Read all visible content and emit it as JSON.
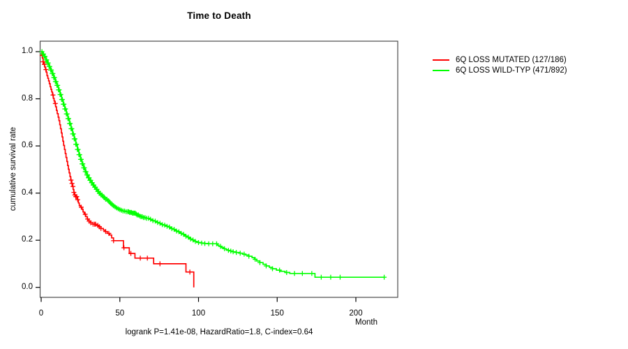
{
  "title": "Time to Death",
  "footer": "logrank P=1.41e-08, HazardRatio=1.8, C-index=0.64",
  "axes": {
    "y_label": "cumulative survival rate",
    "x_label": "Month"
  },
  "legend": {
    "items": [
      {
        "label": "6Q LOSS MUTATED (127/186)",
        "color": "#ff0000"
      },
      {
        "label": "6Q LOSS WILD-TYP (471/892)",
        "color": "#00ff00"
      }
    ]
  },
  "chart_data": {
    "type": "line",
    "subtype": "kaplan-meier-step",
    "title": "Time to Death",
    "xlabel": "Month",
    "ylabel": "cumulative survival rate",
    "xlim": [
      0,
      227
    ],
    "ylim": [
      0,
      1
    ],
    "x_ticks": [
      0,
      50,
      100,
      150,
      200
    ],
    "y_ticks": [
      "0.0",
      "0.2",
      "0.4",
      "0.6",
      "0.8",
      "1.0"
    ],
    "grid": false,
    "legend_position": "outside-top-right",
    "annotation": "logrank P=1.41e-08, HazardRatio=1.8, C-index=0.64",
    "series": [
      {
        "name": "6Q LOSS MUTATED (127/186)",
        "events": "127/186",
        "color": "#ff0000",
        "points": [
          [
            0,
            1.0
          ],
          [
            0.4,
            0.984
          ],
          [
            0.8,
            0.973
          ],
          [
            1.2,
            0.957
          ],
          [
            1.7,
            0.946
          ],
          [
            2.2,
            0.935
          ],
          [
            2.7,
            0.924
          ],
          [
            3.2,
            0.913
          ],
          [
            3.7,
            0.898
          ],
          [
            4.2,
            0.887
          ],
          [
            4.7,
            0.876
          ],
          [
            5.2,
            0.864
          ],
          [
            5.7,
            0.851
          ],
          [
            6.2,
            0.84
          ],
          [
            6.7,
            0.829
          ],
          [
            7.2,
            0.816
          ],
          [
            7.7,
            0.802
          ],
          [
            8.2,
            0.791
          ],
          [
            8.7,
            0.78
          ],
          [
            9.2,
            0.766
          ],
          [
            9.7,
            0.751
          ],
          [
            10.2,
            0.737
          ],
          [
            10.8,
            0.722
          ],
          [
            11.3,
            0.707
          ],
          [
            11.8,
            0.69
          ],
          [
            12.3,
            0.673
          ],
          [
            12.8,
            0.655
          ],
          [
            13.3,
            0.638
          ],
          [
            13.8,
            0.62
          ],
          [
            14.3,
            0.602
          ],
          [
            14.8,
            0.585
          ],
          [
            15.3,
            0.568
          ],
          [
            15.8,
            0.551
          ],
          [
            16.3,
            0.534
          ],
          [
            16.8,
            0.517
          ],
          [
            17.3,
            0.501
          ],
          [
            17.8,
            0.486
          ],
          [
            18.3,
            0.47
          ],
          [
            18.8,
            0.455
          ],
          [
            19.3,
            0.441
          ],
          [
            19.8,
            0.428
          ],
          [
            20.3,
            0.415
          ],
          [
            20.8,
            0.403
          ],
          [
            21.3,
            0.392
          ],
          [
            22,
            0.385
          ],
          [
            23.2,
            0.372
          ],
          [
            23.7,
            0.358
          ],
          [
            24.2,
            0.347
          ],
          [
            25,
            0.34
          ],
          [
            26,
            0.331
          ],
          [
            26.6,
            0.32
          ],
          [
            27.3,
            0.31
          ],
          [
            28.3,
            0.3
          ],
          [
            29.3,
            0.29
          ],
          [
            30.3,
            0.281
          ],
          [
            31.5,
            0.274
          ],
          [
            33,
            0.268
          ],
          [
            35,
            0.263
          ],
          [
            36.5,
            0.257
          ],
          [
            38,
            0.25
          ],
          [
            39.5,
            0.243
          ],
          [
            40.5,
            0.237
          ],
          [
            42,
            0.229
          ],
          [
            43.5,
            0.222
          ],
          [
            44.8,
            0.21
          ],
          [
            46,
            0.198
          ],
          [
            52.3,
            0.168
          ],
          [
            56,
            0.144
          ],
          [
            59.6,
            0.124
          ],
          [
            71.5,
            0.1
          ],
          [
            92,
            0.065
          ],
          [
            97,
            0.0
          ]
        ],
        "censor_marks": [
          0.6,
          1.2,
          2,
          3,
          7.5,
          9,
          19,
          19.6,
          20.2,
          20.8,
          21.4,
          22,
          22.6,
          23.2,
          25.5,
          28,
          29.5,
          30.5,
          31.5,
          33,
          34,
          34.6,
          36,
          37,
          38,
          41,
          43,
          46,
          52.6,
          57,
          63,
          67.5,
          75.5,
          94.5
        ]
      },
      {
        "name": "6Q LOSS WILD-TYP (471/892)",
        "events": "471/892",
        "color": "#00ff00",
        "points": [
          [
            0,
            1.0
          ],
          [
            1,
            0.99
          ],
          [
            2,
            0.98
          ],
          [
            3,
            0.965
          ],
          [
            4,
            0.952
          ],
          [
            5,
            0.937
          ],
          [
            6,
            0.922
          ],
          [
            7,
            0.907
          ],
          [
            8,
            0.89
          ],
          [
            9,
            0.873
          ],
          [
            10,
            0.857
          ],
          [
            11,
            0.838
          ],
          [
            12,
            0.818
          ],
          [
            13,
            0.797
          ],
          [
            14,
            0.777
          ],
          [
            15,
            0.757
          ],
          [
            16,
            0.736
          ],
          [
            17,
            0.716
          ],
          [
            18,
            0.695
          ],
          [
            19,
            0.673
          ],
          [
            20,
            0.651
          ],
          [
            21,
            0.63
          ],
          [
            22,
            0.607
          ],
          [
            23,
            0.585
          ],
          [
            24,
            0.563
          ],
          [
            25,
            0.543
          ],
          [
            26,
            0.524
          ],
          [
            27,
            0.507
          ],
          [
            28,
            0.491
          ],
          [
            29,
            0.477
          ],
          [
            30,
            0.465
          ],
          [
            31,
            0.454
          ],
          [
            32,
            0.444
          ],
          [
            33,
            0.434
          ],
          [
            34,
            0.425
          ],
          [
            35,
            0.416
          ],
          [
            36,
            0.407
          ],
          [
            37,
            0.399
          ],
          [
            38,
            0.392
          ],
          [
            39,
            0.386
          ],
          [
            40,
            0.38
          ],
          [
            41,
            0.374
          ],
          [
            42,
            0.368
          ],
          [
            43,
            0.362
          ],
          [
            44,
            0.356
          ],
          [
            45,
            0.351
          ],
          [
            46,
            0.346
          ],
          [
            47,
            0.341
          ],
          [
            48,
            0.337
          ],
          [
            49,
            0.333
          ],
          [
            50,
            0.33
          ],
          [
            51,
            0.327
          ],
          [
            52,
            0.324
          ],
          [
            54,
            0.321
          ],
          [
            56,
            0.318
          ],
          [
            58,
            0.315
          ],
          [
            60,
            0.311
          ],
          [
            61,
            0.307
          ],
          [
            62,
            0.303
          ],
          [
            63,
            0.3
          ],
          [
            65,
            0.296
          ],
          [
            67,
            0.293
          ],
          [
            69,
            0.289
          ],
          [
            70,
            0.286
          ],
          [
            71,
            0.283
          ],
          [
            72,
            0.281
          ],
          [
            73,
            0.278
          ],
          [
            74,
            0.275
          ],
          [
            75,
            0.272
          ],
          [
            76,
            0.269
          ],
          [
            77,
            0.266
          ],
          [
            78,
            0.264
          ],
          [
            79,
            0.262
          ],
          [
            80,
            0.259
          ],
          [
            81,
            0.256
          ],
          [
            82,
            0.253
          ],
          [
            83,
            0.249
          ],
          [
            84,
            0.246
          ],
          [
            85,
            0.243
          ],
          [
            86,
            0.239
          ],
          [
            87,
            0.236
          ],
          [
            88,
            0.232
          ],
          [
            89,
            0.229
          ],
          [
            90,
            0.225
          ],
          [
            91,
            0.221
          ],
          [
            92,
            0.217
          ],
          [
            93,
            0.213
          ],
          [
            94,
            0.209
          ],
          [
            95,
            0.205
          ],
          [
            96,
            0.201
          ],
          [
            97,
            0.198
          ],
          [
            98,
            0.195
          ],
          [
            99,
            0.192
          ],
          [
            100,
            0.19
          ],
          [
            102,
            0.188
          ],
          [
            104,
            0.186
          ],
          [
            106,
            0.185
          ],
          [
            112,
            0.179
          ],
          [
            113,
            0.174
          ],
          [
            114.5,
            0.169
          ],
          [
            116,
            0.164
          ],
          [
            117.5,
            0.16
          ],
          [
            119,
            0.157
          ],
          [
            120.5,
            0.154
          ],
          [
            122,
            0.151
          ],
          [
            124,
            0.148
          ],
          [
            126,
            0.145
          ],
          [
            128,
            0.141
          ],
          [
            130,
            0.137
          ],
          [
            132,
            0.132
          ],
          [
            134,
            0.126
          ],
          [
            135.5,
            0.119
          ],
          [
            137,
            0.112
          ],
          [
            139,
            0.105
          ],
          [
            141,
            0.098
          ],
          [
            143,
            0.091
          ],
          [
            145,
            0.085
          ],
          [
            147,
            0.079
          ],
          [
            149.5,
            0.073
          ],
          [
            152,
            0.068
          ],
          [
            155,
            0.063
          ],
          [
            158,
            0.059
          ],
          [
            174,
            0.043
          ],
          [
            218,
            0.043
          ]
        ],
        "censor_marks": [
          0.5,
          1,
          1.5,
          2,
          2.5,
          3,
          3.5,
          4,
          4.5,
          5,
          5.5,
          6,
          6.5,
          7,
          7.5,
          8,
          8.5,
          9,
          9.5,
          10,
          10.5,
          11,
          11.5,
          12,
          12.5,
          13,
          13.5,
          14,
          14.5,
          15,
          15.5,
          16,
          16.5,
          17,
          17.5,
          18,
          18.5,
          19,
          19.5,
          20,
          20.5,
          21,
          21.5,
          22,
          22.5,
          23,
          23.5,
          24,
          24.5,
          25,
          25.5,
          26,
          26.5,
          27,
          27.5,
          28,
          28.5,
          29,
          29.5,
          30,
          30.5,
          31,
          31.5,
          32,
          32.5,
          33,
          33.5,
          34,
          34.5,
          35,
          35.5,
          36,
          36.5,
          37,
          37.5,
          38,
          38.7,
          39.4,
          40.2,
          41,
          41.8,
          42.6,
          43.5,
          44.3,
          45.2,
          46,
          47,
          48,
          49,
          50,
          51,
          52,
          53,
          54,
          55,
          55.6,
          56.2,
          56.8,
          57.4,
          58,
          58.6,
          59.2,
          59.8,
          60.4,
          61,
          61.8,
          62.6,
          63.4,
          64.2,
          65,
          66,
          67,
          68.2,
          69.5,
          71,
          72.5,
          74,
          75.5,
          77,
          78.5,
          80,
          81.5,
          83,
          84.5,
          86,
          87.5,
          89,
          90.5,
          92,
          93.5,
          95,
          96.5,
          98,
          100,
          102,
          104,
          106.5,
          109,
          111.5,
          114,
          116.5,
          119,
          120.5,
          122,
          124,
          126.5,
          129,
          132,
          136,
          139,
          143,
          147,
          151.5,
          156,
          161,
          166,
          172,
          178,
          184,
          190,
          218
        ]
      }
    ]
  }
}
